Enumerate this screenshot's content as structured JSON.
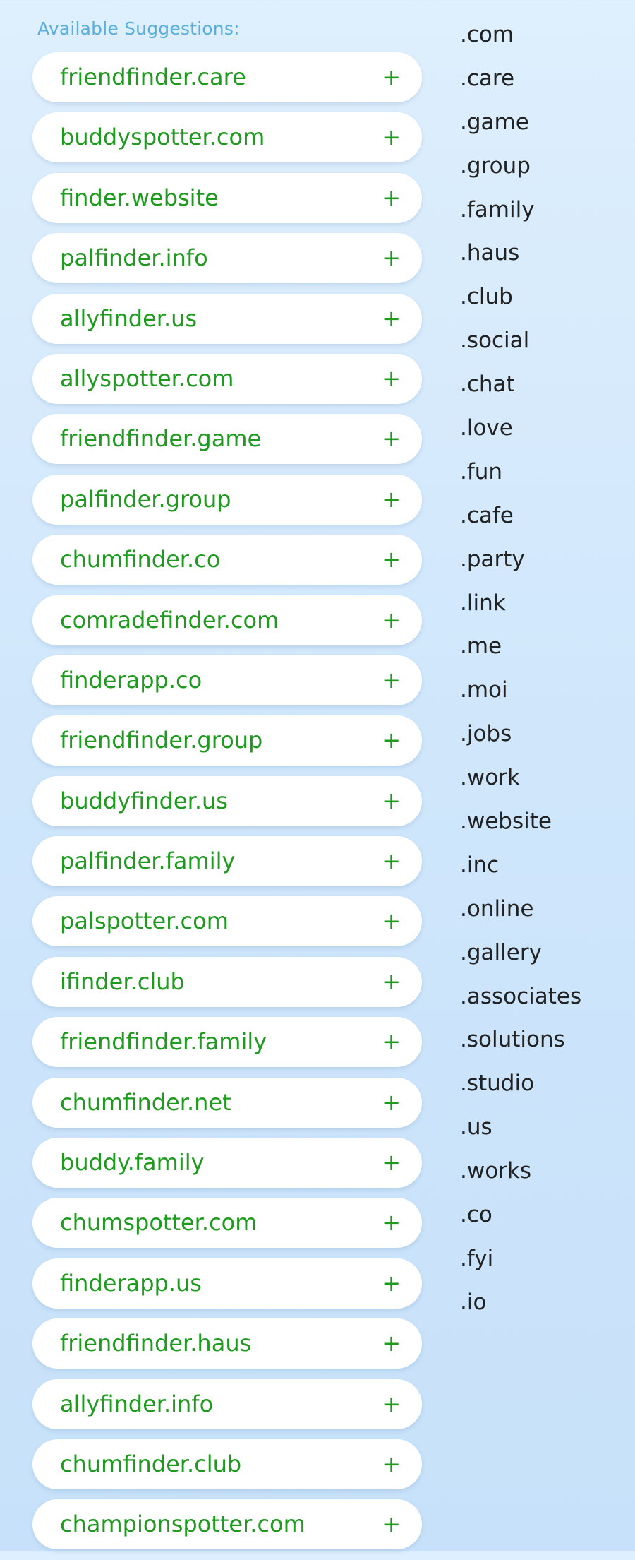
{
  "heading": "Available Suggestions:",
  "plus_symbol": "+",
  "suggestions": [
    "friendfinder.care",
    "buddyspotter.com",
    "finder.website",
    "palfinder.info",
    "allyfinder.us",
    "allyspotter.com",
    "friendfinder.game",
    "palfinder.group",
    "chumfinder.co",
    "comradefinder.com",
    "finderapp.co",
    "friendfinder.group",
    "buddyfinder.us",
    "palfinder.family",
    "palspotter.com",
    "ifinder.club",
    "friendfinder.family",
    "chumfinder.net",
    "buddy.family",
    "chumspotter.com",
    "finderapp.us",
    "friendfinder.haus",
    "allyfinder.info",
    "chumfinder.club",
    "championspotter.com"
  ],
  "tlds": [
    ".com",
    ".care",
    ".game",
    ".group",
    ".family",
    ".haus",
    ".club",
    ".social",
    ".chat",
    ".love",
    ".fun",
    ".cafe",
    ".party",
    ".link",
    ".me",
    ".moi",
    ".jobs",
    ".work",
    ".website",
    ".inc",
    ".online",
    ".gallery",
    ".associates",
    ".solutions",
    ".studio",
    ".us",
    ".works",
    ".co",
    ".fyi",
    ".io"
  ],
  "colors": {
    "suggestion_text": "#1e9a1e",
    "heading": "#5aaede",
    "tld_text": "#222222"
  }
}
